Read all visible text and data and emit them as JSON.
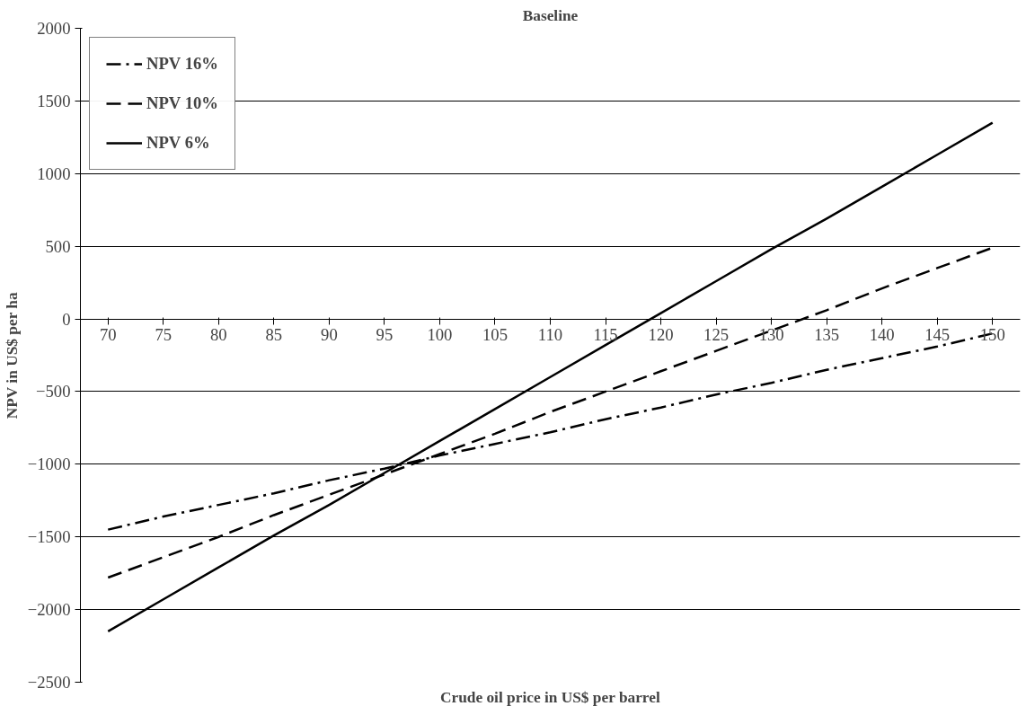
{
  "chart_data": {
    "type": "line",
    "title": "Baseline",
    "xlabel": "Crude oil price in US$ per barrel",
    "ylabel": "NPV in US$ per ha",
    "categories": [
      "70",
      "75",
      "80",
      "85",
      "90",
      "95",
      "100",
      "105",
      "110",
      "115",
      "120",
      "125",
      "130",
      "135",
      "140",
      "145",
      "150"
    ],
    "series": [
      {
        "name": "NPV 16%",
        "color": "#000000",
        "line_style": "dashdot",
        "values": [
          -1450,
          -1360,
          -1280,
          -1200,
          -1110,
          -1030,
          -940,
          -860,
          -780,
          -690,
          -610,
          -520,
          -440,
          -350,
          -270,
          -190,
          -100
        ]
      },
      {
        "name": "NPV 10%",
        "color": "#000000",
        "line_style": "dashed",
        "values": [
          -1780,
          -1640,
          -1500,
          -1350,
          -1210,
          -1070,
          -930,
          -790,
          -640,
          -500,
          -360,
          -220,
          -80,
          60,
          210,
          350,
          490
        ]
      },
      {
        "name": "NPV 6%",
        "color": "#000000",
        "line_style": "solid",
        "values": [
          -2150,
          -1930,
          -1710,
          -1490,
          -1280,
          -1060,
          -840,
          -620,
          -400,
          -180,
          40,
          260,
          480,
          690,
          910,
          1130,
          1350
        ]
      }
    ],
    "ylim": [
      -2500,
      2000
    ],
    "yticks": [
      -2500,
      -2000,
      -1500,
      -1000,
      -500,
      0,
      500,
      1000,
      1500,
      2000
    ],
    "grid": "y",
    "legend": "top left",
    "marker": "none"
  }
}
